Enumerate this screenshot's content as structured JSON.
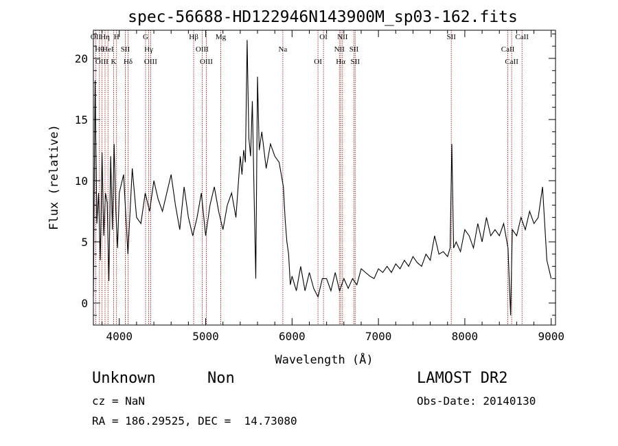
{
  "chart_data": {
    "type": "line",
    "title": "spec-56688-HD122946N143900M_sp03-162.fits",
    "xlabel": "Wavelength (Å)",
    "ylabel": "Flux (relative)",
    "xlim": [
      3700,
      9050
    ],
    "ylim": [
      -1.8,
      22.3
    ],
    "x_ticks": [
      4000,
      5000,
      6000,
      7000,
      8000,
      9000
    ],
    "y_ticks": [
      0,
      5,
      10,
      15,
      20
    ],
    "grid": false,
    "series": [
      {
        "x": [
          3700,
          3720,
          3740,
          3760,
          3780,
          3800,
          3820,
          3840,
          3860,
          3880,
          3900,
          3920,
          3940,
          3960,
          3980,
          4000,
          4050,
          4100,
          4150,
          4200,
          4250,
          4300,
          4350,
          4400,
          4450,
          4500,
          4550,
          4600,
          4650,
          4700,
          4750,
          4800,
          4850,
          4900,
          4950,
          5000,
          5050,
          5100,
          5150,
          5200,
          5250,
          5300,
          5350,
          5400,
          5420,
          5440,
          5460,
          5480,
          5500,
          5520,
          5540,
          5560,
          5580,
          5600,
          5620,
          5650,
          5700,
          5750,
          5800,
          5850,
          5900,
          5920,
          5940,
          5960,
          5980,
          6000,
          6050,
          6100,
          6150,
          6200,
          6250,
          6300,
          6350,
          6400,
          6450,
          6500,
          6550,
          6600,
          6650,
          6700,
          6750,
          6800,
          6850,
          6900,
          6950,
          7000,
          7050,
          7100,
          7150,
          7200,
          7250,
          7300,
          7350,
          7400,
          7450,
          7500,
          7550,
          7600,
          7650,
          7700,
          7750,
          7800,
          7830,
          7850,
          7870,
          7900,
          7950,
          8000,
          8050,
          8100,
          8150,
          8200,
          8250,
          8300,
          8350,
          8400,
          8450,
          8500,
          8530,
          8550,
          8600,
          8650,
          8700,
          8750,
          8800,
          8850,
          8900,
          8950,
          9000
        ],
        "y": [
          0.5,
          18.2,
          6.5,
          9.0,
          3.5,
          12.3,
          5.5,
          9.0,
          8.2,
          1.8,
          12.0,
          6.0,
          13.0,
          7.5,
          4.5,
          9.0,
          10.5,
          4.0,
          11.0,
          7.0,
          6.5,
          9.0,
          7.5,
          10.0,
          8.5,
          7.5,
          9.0,
          10.5,
          8.0,
          6.0,
          9.5,
          7.0,
          5.5,
          7.0,
          9.0,
          5.5,
          8.0,
          9.5,
          7.5,
          6.0,
          8.0,
          9.0,
          7.0,
          12.0,
          10.5,
          12.5,
          11.5,
          21.5,
          13.5,
          12.0,
          16.5,
          9.0,
          2.0,
          18.5,
          12.5,
          14.0,
          11.0,
          13.0,
          12.0,
          11.5,
          9.5,
          6.8,
          5.0,
          4.0,
          1.5,
          2.2,
          1.0,
          3.0,
          1.0,
          2.5,
          1.2,
          0.5,
          2.0,
          2.0,
          1.0,
          2.5,
          1.0,
          2.0,
          1.2,
          2.0,
          1.5,
          2.8,
          2.5,
          2.2,
          2.0,
          2.8,
          2.5,
          3.0,
          2.5,
          3.2,
          2.8,
          3.5,
          3.0,
          3.8,
          3.3,
          3.0,
          4.0,
          3.5,
          5.5,
          4.0,
          4.2,
          3.8,
          4.5,
          13.0,
          4.5,
          5.0,
          4.2,
          6.0,
          5.5,
          4.5,
          6.5,
          5.0,
          7.0,
          5.5,
          6.0,
          5.5,
          6.5,
          4.5,
          -1.0,
          6.0,
          5.5,
          7.0,
          6.0,
          7.5,
          6.5,
          7.0,
          9.5,
          3.5,
          2.0
        ]
      }
    ],
    "lines": [
      {
        "wl": 3727,
        "label": "OII"
      },
      {
        "wl": 3770,
        "label": "Hθ"
      },
      {
        "wl": 3798,
        "label": "OIII"
      },
      {
        "wl": 3835,
        "label": "Hη"
      },
      {
        "wl": 3869,
        "label": "HeI"
      },
      {
        "wl": 3934,
        "label": "K"
      },
      {
        "wl": 3968,
        "label": "H"
      },
      {
        "wl": 4069,
        "label": "SII"
      },
      {
        "wl": 4102,
        "label": "Hδ"
      },
      {
        "wl": 4304,
        "label": "G"
      },
      {
        "wl": 4340,
        "label": "Hγ"
      },
      {
        "wl": 4363,
        "label": "OIII"
      },
      {
        "wl": 4861,
        "label": "Hβ"
      },
      {
        "wl": 4959,
        "label": "OIII"
      },
      {
        "wl": 5007,
        "label": "OIII"
      },
      {
        "wl": 5175,
        "label": "Mg"
      },
      {
        "wl": 5893,
        "label": "Na"
      },
      {
        "wl": 6300,
        "label": "OI"
      },
      {
        "wl": 6364,
        "label": "OI"
      },
      {
        "wl": 6548,
        "label": "NII"
      },
      {
        "wl": 6563,
        "label": "Hα"
      },
      {
        "wl": 6584,
        "label": "NII"
      },
      {
        "wl": 6717,
        "label": "SII"
      },
      {
        "wl": 6731,
        "label": "SII"
      },
      {
        "wl": 7843,
        "label": "SII"
      },
      {
        "wl": 8498,
        "label": "CaII"
      },
      {
        "wl": 8542,
        "label": "CaII"
      },
      {
        "wl": 8662,
        "label": "CaII"
      }
    ],
    "line_color": "#8b0000"
  },
  "info": {
    "class_label": "Unknown",
    "subclass_label": "Non",
    "cz": "cz = NaN",
    "radec": "RA = 186.29525, DEC =  14.73080",
    "survey": "LAMOST DR2",
    "obsdate": "Obs-Date: 20140130"
  }
}
